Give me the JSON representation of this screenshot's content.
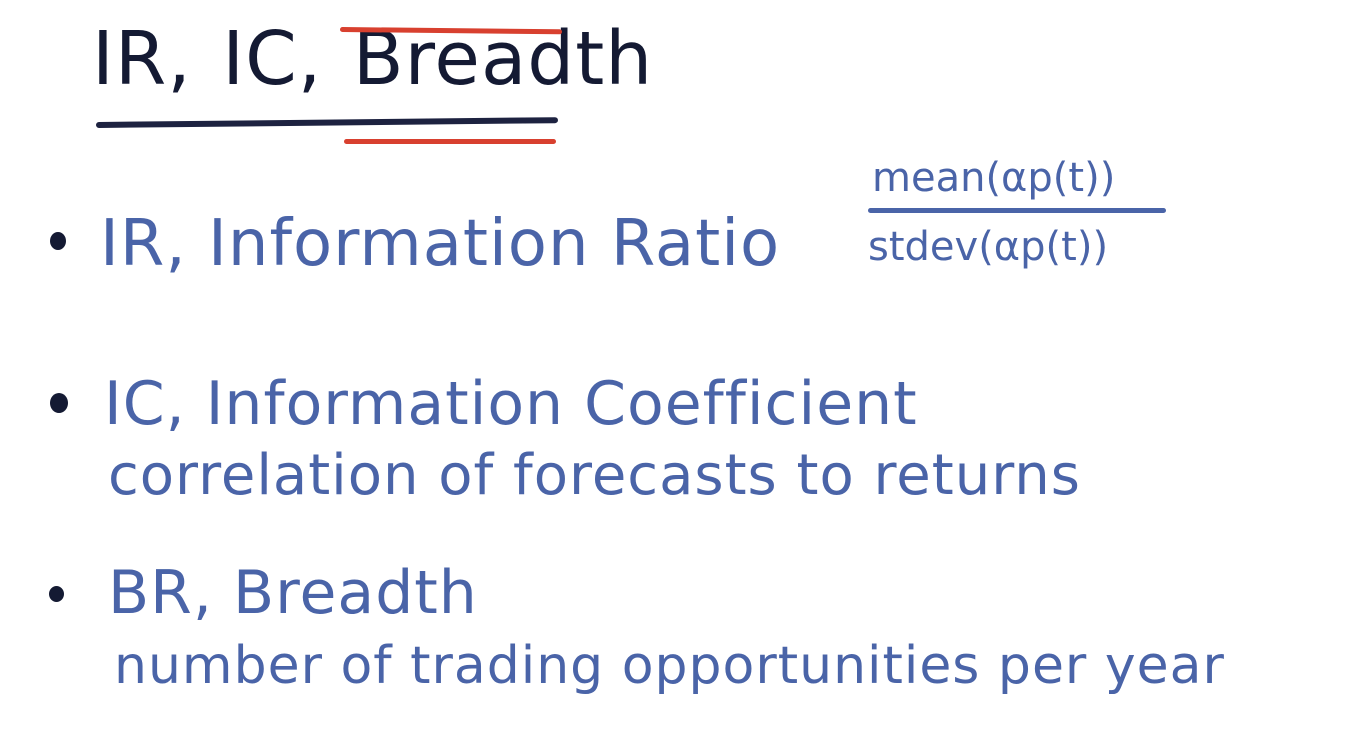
{
  "title": {
    "part_ir": "IR,",
    "part_ic": "IC,",
    "part_breadth": "Breadth"
  },
  "colors": {
    "title_ink": "#141a33",
    "body_ink": "#4a64a8",
    "accent_red": "#d8402f",
    "navy_rule": "#1d2240",
    "background": "#ffffff"
  },
  "items": [
    {
      "heading": "IR, Information Ratio"
    },
    {
      "heading": "IC, Information Coefficient",
      "detail": "correlation of forecasts to returns"
    },
    {
      "heading": "BR, Breadth",
      "detail": "number of trading opportunities per year"
    }
  ],
  "formula": {
    "numerator": "mean(αp(t))",
    "denominator": "stdev(αp(t))"
  }
}
